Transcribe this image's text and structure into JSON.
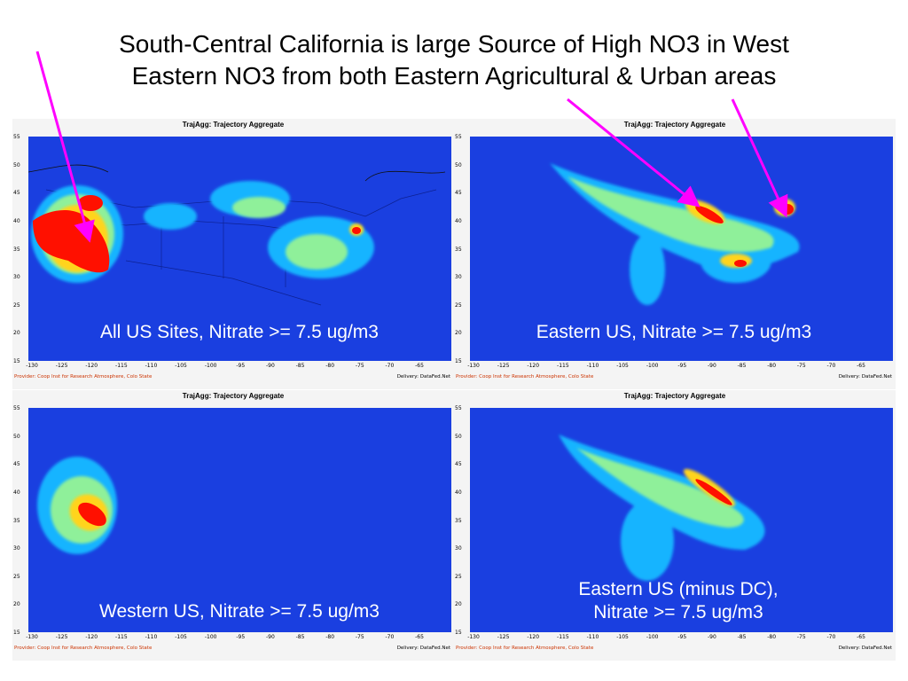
{
  "title_lines": [
    "South-Central California is large Source of High NO3 in West",
    "Eastern NO3 from both Eastern Agricultural & Urban areas"
  ],
  "panel_title": "TrajAgg: Trajectory Aggregate",
  "provider": "Provider: Coop Inst for Research Atmosphere, Colo State",
  "delivery": "Delivery: DataFed.Net",
  "y_ticks": [
    "55",
    "50",
    "45",
    "40",
    "35",
    "30",
    "25",
    "20",
    "15"
  ],
  "x_ticks": [
    "-130",
    "-125",
    "-120",
    "-115",
    "-110",
    "-105",
    "-100",
    "-95",
    "-90",
    "-85",
    "-80",
    "-75",
    "-70",
    "-65"
  ],
  "captions": {
    "tl": [
      "All US Sites, Nitrate >= 7.5 ug/m3"
    ],
    "tr": [
      "Eastern US, Nitrate >= 7.5 ug/m3"
    ],
    "bl": [
      "Western US, Nitrate >= 7.5 ug/m3"
    ],
    "br": [
      "Eastern US (minus DC),",
      "Nitrate >= 7.5 ug/m3"
    ]
  },
  "colors": {
    "background": "#1a3fe0",
    "arrow": "#ff00ff",
    "high": "#ff0000",
    "caption": "#ffffff"
  }
}
